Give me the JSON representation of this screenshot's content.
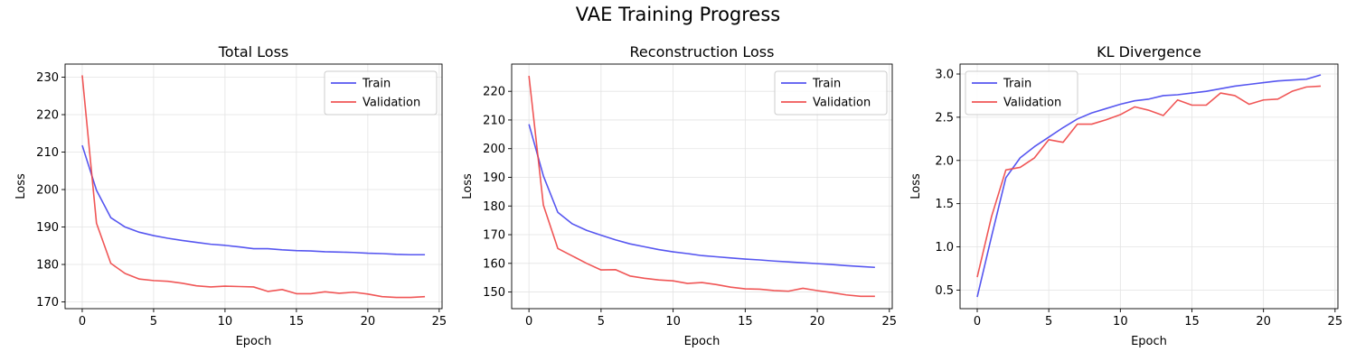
{
  "figure": {
    "title": "VAE Training Progress"
  },
  "colors": {
    "train": "#4444ee",
    "validation": "#ee4444",
    "grid": "#e3e3e3"
  },
  "chart_data": [
    {
      "type": "line",
      "title": "Total Loss",
      "xlabel": "Epoch",
      "ylabel": "Loss",
      "xlim": [
        -1.2,
        25.2
      ],
      "ylim": [
        168.2,
        233.5
      ],
      "xticks": [
        0,
        5,
        10,
        15,
        20,
        25
      ],
      "yticks": [
        170,
        180,
        190,
        200,
        210,
        220,
        230
      ],
      "ytick_labels": [
        "170",
        "180",
        "190",
        "200",
        "210",
        "220",
        "230"
      ],
      "grid": true,
      "legend": "upper right",
      "x": [
        0,
        1,
        2,
        3,
        4,
        5,
        6,
        7,
        8,
        9,
        10,
        11,
        12,
        13,
        14,
        15,
        16,
        17,
        18,
        19,
        20,
        21,
        22,
        23,
        24
      ],
      "series": [
        {
          "name": "Train",
          "color": "#4444ee",
          "values": [
            211.8,
            199.8,
            192.5,
            190.0,
            188.6,
            187.7,
            187.0,
            186.4,
            185.9,
            185.4,
            185.1,
            184.7,
            184.2,
            184.2,
            183.9,
            183.7,
            183.6,
            183.4,
            183.3,
            183.2,
            183.0,
            182.9,
            182.7,
            182.6,
            182.6
          ]
        },
        {
          "name": "Validation",
          "color": "#ee4444",
          "values": [
            230.5,
            191.0,
            180.3,
            177.6,
            176.1,
            175.7,
            175.5,
            175.0,
            174.3,
            174.0,
            174.2,
            174.1,
            174.0,
            172.8,
            173.3,
            172.2,
            172.2,
            172.7,
            172.3,
            172.6,
            172.1,
            171.4,
            171.2,
            171.2,
            171.4
          ]
        }
      ]
    },
    {
      "type": "line",
      "title": "Reconstruction Loss",
      "xlabel": "Epoch",
      "ylabel": "Loss",
      "xlim": [
        -1.2,
        25.2
      ],
      "ylim": [
        144.2,
        229.5
      ],
      "xticks": [
        0,
        5,
        10,
        15,
        20,
        25
      ],
      "yticks": [
        150,
        160,
        170,
        180,
        190,
        200,
        210,
        220
      ],
      "ytick_labels": [
        "150",
        "160",
        "170",
        "180",
        "190",
        "200",
        "210",
        "220"
      ],
      "grid": true,
      "legend": "upper right",
      "x": [
        0,
        1,
        2,
        3,
        4,
        5,
        6,
        7,
        8,
        9,
        10,
        11,
        12,
        13,
        14,
        15,
        16,
        17,
        18,
        19,
        20,
        21,
        22,
        23,
        24
      ],
      "series": [
        {
          "name": "Train",
          "color": "#4444ee",
          "values": [
            208.5,
            190.5,
            177.8,
            173.8,
            171.5,
            169.8,
            168.2,
            166.8,
            165.8,
            164.8,
            164.0,
            163.4,
            162.7,
            162.3,
            161.9,
            161.5,
            161.2,
            160.8,
            160.5,
            160.2,
            159.9,
            159.6,
            159.2,
            158.9,
            158.6
          ]
        },
        {
          "name": "Validation",
          "color": "#ee4444",
          "values": [
            225.4,
            180.3,
            165.2,
            162.6,
            160.0,
            157.7,
            157.8,
            155.6,
            154.8,
            154.2,
            153.9,
            153.0,
            153.3,
            152.6,
            151.7,
            151.1,
            151.0,
            150.5,
            150.3,
            151.3,
            150.5,
            149.8,
            149.0,
            148.5,
            148.5
          ]
        }
      ]
    },
    {
      "type": "line",
      "title": "KL Divergence",
      "xlabel": "Epoch",
      "ylabel": "Loss",
      "xlim": [
        -1.2,
        25.2
      ],
      "ylim": [
        0.285,
        3.115
      ],
      "xticks": [
        0,
        5,
        10,
        15,
        20,
        25
      ],
      "yticks": [
        0.5,
        1.0,
        1.5,
        2.0,
        2.5,
        3.0
      ],
      "ytick_labels": [
        "0.5",
        "1.0",
        "1.5",
        "2.0",
        "2.5",
        "3.0"
      ],
      "grid": true,
      "legend": "upper left",
      "x": [
        0,
        1,
        2,
        3,
        4,
        5,
        6,
        7,
        8,
        9,
        10,
        11,
        12,
        13,
        14,
        15,
        16,
        17,
        18,
        19,
        20,
        21,
        22,
        23,
        24
      ],
      "series": [
        {
          "name": "Train",
          "color": "#4444ee",
          "values": [
            0.42,
            1.12,
            1.8,
            2.03,
            2.16,
            2.27,
            2.38,
            2.48,
            2.55,
            2.6,
            2.65,
            2.69,
            2.71,
            2.75,
            2.76,
            2.78,
            2.8,
            2.83,
            2.86,
            2.88,
            2.9,
            2.92,
            2.93,
            2.94,
            2.99
          ]
        },
        {
          "name": "Validation",
          "color": "#ee4444",
          "values": [
            0.65,
            1.35,
            1.89,
            1.92,
            2.03,
            2.24,
            2.21,
            2.42,
            2.42,
            2.47,
            2.53,
            2.62,
            2.58,
            2.52,
            2.7,
            2.64,
            2.64,
            2.78,
            2.75,
            2.65,
            2.7,
            2.71,
            2.8,
            2.85,
            2.86
          ]
        }
      ]
    }
  ]
}
